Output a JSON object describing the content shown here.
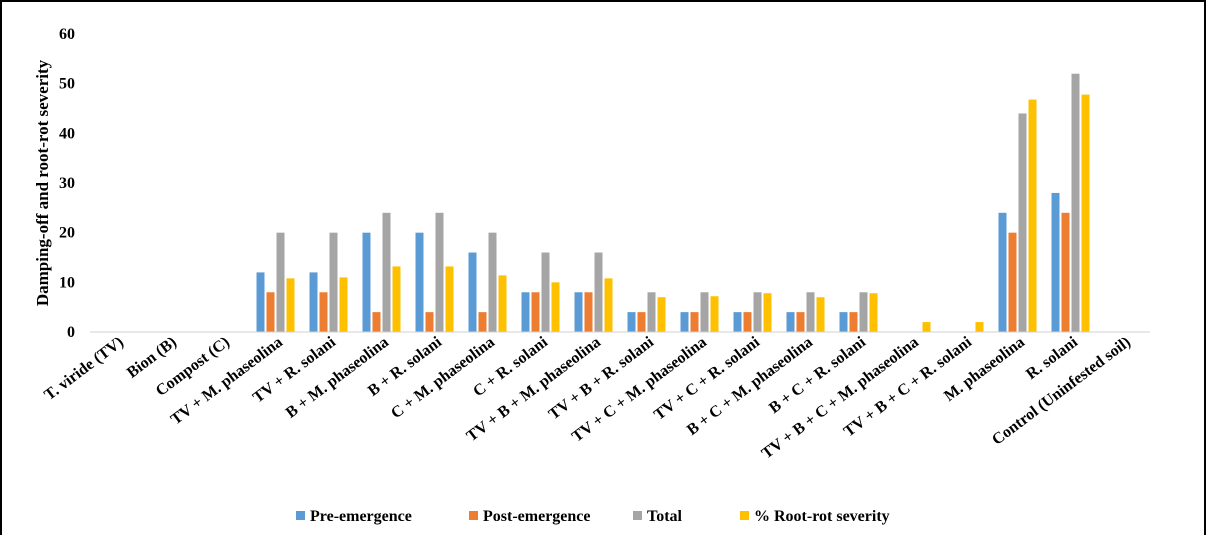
{
  "chart_data": {
    "type": "bar",
    "ylabel": "Damping-off and root-rot severity",
    "xlabel": "",
    "ylim": [
      0,
      60
    ],
    "yticks": [
      "0",
      "10",
      "20",
      "30",
      "40",
      "50",
      "60"
    ],
    "grid": false,
    "legend_position": "bottom",
    "categories": [
      "T. viride (TV)",
      "Bion (B)",
      "Compost (C)",
      "TV + M. phaseolina",
      "TV + R. solani",
      "B + M. phaseolina",
      "B + R. solani",
      "C + M. phaseolina",
      "C + R. solani",
      "TV + B + M. phaseolina",
      "TV + B + R. solani",
      "TV + C + M. phaseolina",
      "TV + C + R. solani",
      "B + C + M. phaseolina",
      "B + C + R. solani",
      "TV + B + C + M. phaseolina",
      "TV + B + C + R. solani",
      "M. phaseolina",
      "R. solani",
      "Control (Uninfested soil)"
    ],
    "series": [
      {
        "name": "Pre-emergence",
        "color": "#5B9BD5",
        "values": [
          0,
          0,
          0,
          12,
          12,
          20,
          20,
          16,
          8,
          8,
          4,
          4,
          4,
          4,
          4,
          0,
          0,
          24,
          28,
          0
        ]
      },
      {
        "name": "Post-emergence",
        "color": "#ED7D31",
        "values": [
          0,
          0,
          0,
          8,
          8,
          4,
          4,
          4,
          8,
          8,
          4,
          4,
          4,
          4,
          4,
          0,
          0,
          20,
          24,
          0
        ]
      },
      {
        "name": "Total",
        "color": "#A5A5A5",
        "values": [
          0,
          0,
          0,
          20,
          20,
          24,
          24,
          20,
          16,
          16,
          8,
          8,
          8,
          8,
          8,
          0,
          0,
          44,
          52,
          0
        ]
      },
      {
        "name": "% Root-rot severity",
        "color": "#FFC000",
        "values": [
          0,
          0,
          0,
          10.8,
          11,
          13.2,
          13.2,
          11.4,
          10,
          10.8,
          7,
          7.2,
          7.8,
          7,
          7.8,
          2,
          2,
          46.8,
          47.8,
          0
        ]
      }
    ]
  }
}
